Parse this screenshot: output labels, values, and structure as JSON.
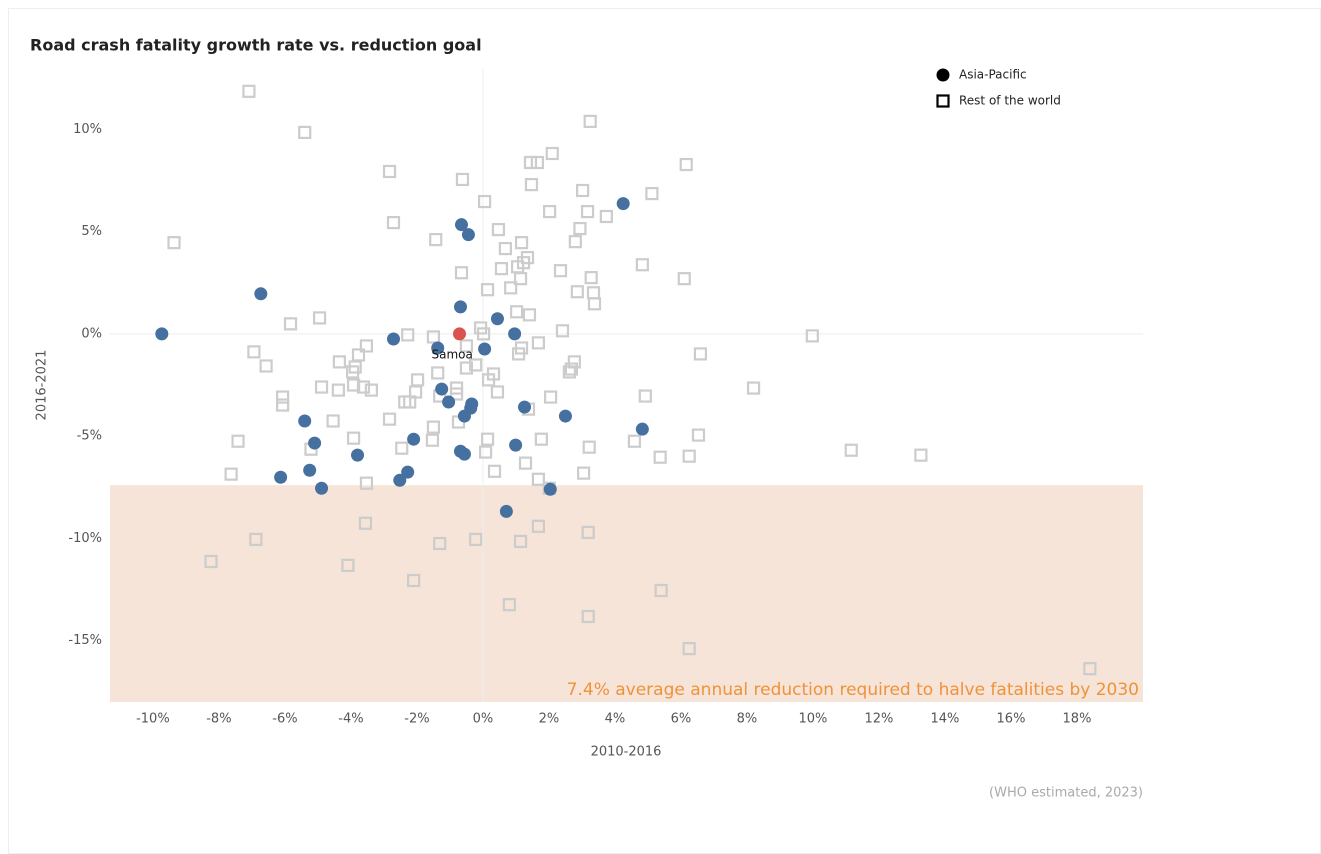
{
  "chart_data": {
    "type": "scatter",
    "title": "Road crash fatality growth rate vs. reduction goal",
    "x_label": "2010-2016",
    "y_label": "2016-2021",
    "source": "(WHO estimated, 2023)",
    "xlim": [
      -11.3,
      20
    ],
    "ylim": [
      -18,
      13
    ],
    "xticks": [
      {
        "value": -10,
        "label": "-10%"
      },
      {
        "value": -8,
        "label": "-8%"
      },
      {
        "value": -6,
        "label": "-6%"
      },
      {
        "value": -4,
        "label": "-4%"
      },
      {
        "value": -2,
        "label": "-2%"
      },
      {
        "value": 0,
        "label": "0%"
      },
      {
        "value": 2,
        "label": "2%"
      },
      {
        "value": 4,
        "label": "4%"
      },
      {
        "value": 6,
        "label": "6%"
      },
      {
        "value": 8,
        "label": "8%"
      },
      {
        "value": 10,
        "label": "10%"
      },
      {
        "value": 12,
        "label": "12%"
      },
      {
        "value": 14,
        "label": "14%"
      },
      {
        "value": 16,
        "label": "16%"
      },
      {
        "value": 18,
        "label": "18%"
      }
    ],
    "yticks": [
      {
        "value": -15,
        "label": "-15%"
      },
      {
        "value": -10,
        "label": "-10%"
      },
      {
        "value": -5,
        "label": "-5%"
      },
      {
        "value": 0,
        "label": "0%"
      },
      {
        "value": 5,
        "label": "5%"
      },
      {
        "value": 10,
        "label": "10%"
      }
    ],
    "zero_lines": true,
    "grid": false,
    "legend": "top-right",
    "reduction_band": {
      "from": -7.4,
      "color": "#f5e4d7",
      "label": "7.4% average annual reduction required to halve fatalities by 2030",
      "label_color": "#f0923a"
    },
    "highlight": {
      "label": "Samoa",
      "x": -0.71,
      "y": 0,
      "color": "#d9534f"
    },
    "series": [
      {
        "name": "Asia-Pacific",
        "marker": "circle",
        "color": "#45709f",
        "x": [
          -9.73,
          -6.73,
          -0.65,
          -0.44,
          4.25,
          -0.68,
          0.44,
          0.96,
          0.05,
          -2.71,
          -1.37,
          -1.25,
          -1.04,
          -0.34,
          -0.37,
          -0.56,
          1.26,
          2.5,
          4.83,
          -5.4,
          -5.1,
          -2.1,
          -3.8,
          -0.68,
          -0.56,
          0.99,
          -6.13,
          -5.25,
          -4.89,
          -2.28,
          -2.52,
          2.04,
          0.71
        ],
        "values": [
          0,
          1.96,
          5.34,
          4.85,
          6.37,
          1.32,
          0.74,
          0,
          -0.74,
          -0.25,
          -0.69,
          -2.7,
          -3.33,
          -3.43,
          -3.63,
          -4.02,
          -3.58,
          -4.02,
          -4.66,
          -4.26,
          -5.34,
          -5.15,
          -5.93,
          -5.74,
          -5.88,
          -5.44,
          -7.01,
          -6.67,
          -7.55,
          -6.76,
          -7.16,
          -7.6,
          -8.68
        ]
      },
      {
        "name": "Rest of the world",
        "marker": "square",
        "color": "#cccccc",
        "x": [
          -7.09,
          -5.4,
          3.25,
          -2.83,
          -0.62,
          2.1,
          1.44,
          1.65,
          6.16,
          1.47,
          3.02,
          0.05,
          5.12,
          -2.71,
          2.02,
          3.17,
          3.74,
          2.94,
          0.47,
          -9.36,
          -1.43,
          1.17,
          2.8,
          0.68,
          1.35,
          1.23,
          4.83,
          0.56,
          1.05,
          2.35,
          -0.65,
          1.14,
          3.28,
          6.1,
          0.84,
          0.14,
          2.86,
          3.35,
          3.38,
          -4.95,
          -5.83,
          1.02,
          1.41,
          -2.28,
          -1.5,
          -0.07,
          0.02,
          2.41,
          9.98,
          -6.94,
          -6.57,
          -3.53,
          -3.77,
          -4.35,
          -3.87,
          -3.95,
          -3.92,
          -4.38,
          -4.89,
          -3.62,
          -3.38,
          -1.98,
          -2.04,
          -2.37,
          -2.22,
          -0.5,
          -0.22,
          -0.5,
          -1.37,
          0.32,
          0.17,
          -0.8,
          -0.8,
          0.44,
          -1.31,
          1.08,
          1.17,
          1.68,
          2.77,
          2.68,
          2.62,
          6.59,
          8.2,
          2.05,
          1.38,
          4.92,
          -6.07,
          -6.07,
          -4.54,
          -2.83,
          -1.5,
          -0.74,
          -1.53,
          -3.92,
          -7.42,
          -5.21,
          -2.46,
          0.14,
          0.08,
          1.77,
          3.22,
          4.59,
          6.53,
          5.37,
          6.25,
          11.16,
          13.27,
          1.29,
          0.35,
          -7.63,
          -3.53,
          3.05,
          1.68,
          2.01,
          -3.56,
          -6.88,
          3.19,
          1.68,
          -1.31,
          -0.22,
          1.14,
          -8.24,
          -4.09,
          -2.1,
          5.4,
          0.8,
          3.19,
          6.25,
          18.39
        ],
        "values": [
          11.86,
          9.85,
          10.39,
          7.94,
          7.55,
          8.82,
          8.38,
          8.38,
          8.28,
          7.3,
          7.01,
          6.47,
          6.86,
          5.44,
          5.98,
          5.98,
          5.74,
          5.15,
          5.1,
          4.46,
          4.61,
          4.46,
          4.51,
          4.17,
          3.73,
          3.48,
          3.38,
          3.19,
          3.28,
          3.09,
          2.99,
          2.7,
          2.75,
          2.7,
          2.25,
          2.16,
          2.06,
          2.01,
          1.47,
          0.78,
          0.49,
          1.08,
          0.93,
          -0.05,
          -0.15,
          0.29,
          0,
          0.15,
          -0.1,
          -0.88,
          -1.57,
          -0.59,
          -1.03,
          -1.37,
          -1.62,
          -1.86,
          -2.5,
          -2.75,
          -2.6,
          -2.6,
          -2.75,
          -2.25,
          -2.84,
          -3.33,
          -3.33,
          -0.59,
          -1.52,
          -1.67,
          -1.91,
          -1.96,
          -2.25,
          -2.65,
          -2.94,
          -2.84,
          -3.04,
          -0.98,
          -0.69,
          -0.44,
          -1.37,
          -1.72,
          -1.86,
          -0.98,
          -2.65,
          -3.09,
          -3.68,
          -3.04,
          -3.09,
          -3.48,
          -4.26,
          -4.17,
          -4.56,
          -4.31,
          -5.2,
          -5.1,
          -5.25,
          -5.64,
          -5.59,
          -5.15,
          -5.78,
          -5.15,
          -5.54,
          -5.25,
          -4.95,
          -6.03,
          -5.98,
          -5.69,
          -5.93,
          -6.32,
          -6.72,
          -6.86,
          -7.3,
          -6.81,
          -7.11,
          -7.55,
          -9.26,
          -10.05,
          -9.71,
          -9.41,
          -10.25,
          -10.05,
          -10.15,
          -11.13,
          -11.32,
          -12.06,
          -12.55,
          -13.24,
          -13.82,
          -15.39,
          -16.37
        ]
      }
    ]
  }
}
